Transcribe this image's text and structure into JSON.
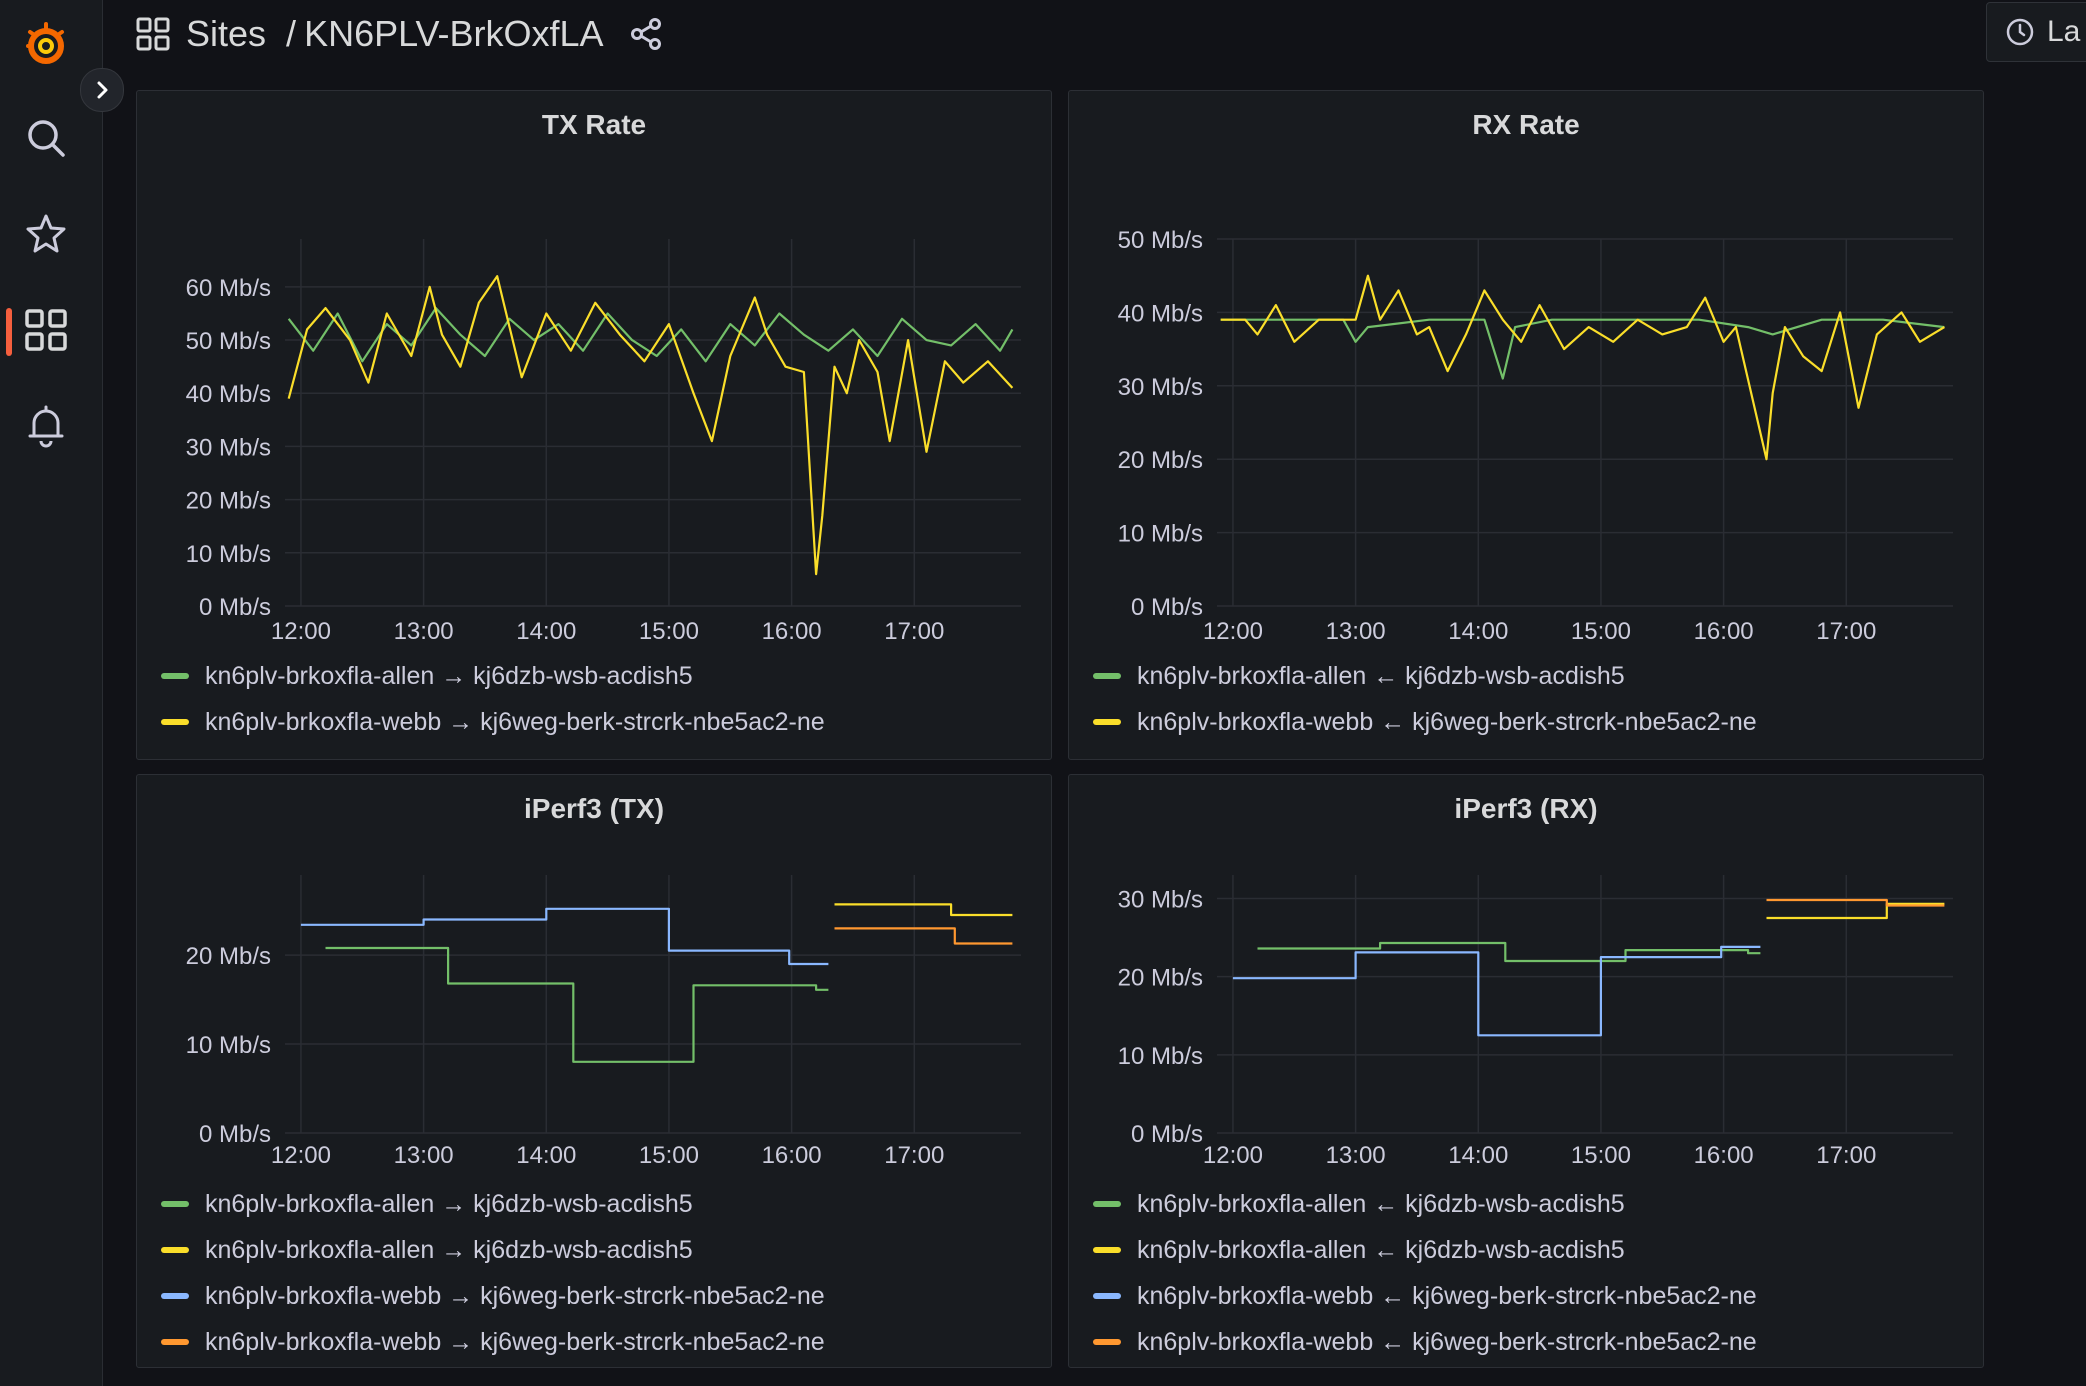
{
  "breadcrumb": {
    "parent": "Sites",
    "separator": "/",
    "current": "KN6PLV-BrkOxfLA"
  },
  "time_picker": {
    "label": "La"
  },
  "colors": {
    "green": "#73bf69",
    "yellow": "#fade2a",
    "blue": "#8ab8ff",
    "orange": "#ff9830",
    "accent": "#f55f3e"
  },
  "panels": [
    {
      "title": "TX Rate",
      "legend": [
        {
          "label": "kn6plv-brkoxfla-allen → kj6dzb-wsb-acdish5",
          "color": "#73bf69"
        },
        {
          "label": "kn6plv-brkoxfla-webb → kj6weg-berk-strcrk-nbe5ac2-ne",
          "color": "#fade2a"
        }
      ]
    },
    {
      "title": "RX Rate",
      "legend": [
        {
          "label": "kn6plv-brkoxfla-allen ← kj6dzb-wsb-acdish5",
          "color": "#73bf69"
        },
        {
          "label": "kn6plv-brkoxfla-webb ← kj6weg-berk-strcrk-nbe5ac2-ne",
          "color": "#fade2a"
        }
      ]
    },
    {
      "title": "iPerf3 (TX)",
      "legend": [
        {
          "label": "kn6plv-brkoxfla-allen → kj6dzb-wsb-acdish5",
          "color": "#73bf69"
        },
        {
          "label": "kn6plv-brkoxfla-allen → kj6dzb-wsb-acdish5",
          "color": "#fade2a"
        },
        {
          "label": "kn6plv-brkoxfla-webb → kj6weg-berk-strcrk-nbe5ac2-ne",
          "color": "#8ab8ff"
        },
        {
          "label": "kn6plv-brkoxfla-webb → kj6weg-berk-strcrk-nbe5ac2-ne",
          "color": "#ff9830"
        }
      ]
    },
    {
      "title": "iPerf3 (RX)",
      "legend": [
        {
          "label": "kn6plv-brkoxfla-allen ← kj6dzb-wsb-acdish5",
          "color": "#73bf69"
        },
        {
          "label": "kn6plv-brkoxfla-allen ← kj6dzb-wsb-acdish5",
          "color": "#fade2a"
        },
        {
          "label": "kn6plv-brkoxfla-webb ← kj6weg-berk-strcrk-nbe5ac2-ne",
          "color": "#8ab8ff"
        },
        {
          "label": "kn6plv-brkoxfla-webb ← kj6weg-berk-strcrk-nbe5ac2-ne",
          "color": "#ff9830"
        }
      ]
    }
  ],
  "chart_data": [
    {
      "type": "line",
      "title": "TX Rate",
      "x_ticks": [
        "12:00",
        "13:00",
        "14:00",
        "15:00",
        "16:00",
        "17:00"
      ],
      "y_ticks": [
        "0 Mb/s",
        "10 Mb/s",
        "20 Mb/s",
        "30 Mb/s",
        "40 Mb/s",
        "50 Mb/s",
        "60 Mb/s"
      ],
      "xlim": [
        11.87,
        17.87
      ],
      "ylim": [
        0,
        69
      ],
      "series": [
        {
          "name": "kn6plv-brkoxfla-allen → kj6dzb-wsb-acdish5",
          "color": "#73bf69",
          "x": [
            11.9,
            12.1,
            12.3,
            12.5,
            12.7,
            12.9,
            13.1,
            13.3,
            13.5,
            13.7,
            13.9,
            14.1,
            14.3,
            14.5,
            14.7,
            14.9,
            15.1,
            15.3,
            15.5,
            15.7,
            15.9,
            16.1,
            16.3,
            16.5,
            16.7,
            16.9,
            17.1,
            17.3,
            17.5,
            17.7,
            17.8
          ],
          "values": [
            54,
            48,
            55,
            46,
            53,
            49,
            56,
            51,
            47,
            54,
            50,
            53,
            48,
            55,
            50,
            47,
            52,
            46,
            53,
            49,
            55,
            51,
            48,
            52,
            47,
            54,
            50,
            49,
            53,
            48,
            52
          ]
        },
        {
          "name": "kn6plv-brkoxfla-webb → kj6weg-berk-strcrk-nbe5ac2-ne",
          "color": "#fade2a",
          "x": [
            11.9,
            12.05,
            12.2,
            12.4,
            12.55,
            12.7,
            12.9,
            13.05,
            13.15,
            13.3,
            13.45,
            13.6,
            13.8,
            14.0,
            14.2,
            14.4,
            14.6,
            14.8,
            15.0,
            15.2,
            15.35,
            15.5,
            15.7,
            15.8,
            15.95,
            16.1,
            16.2,
            16.25,
            16.35,
            16.45,
            16.55,
            16.7,
            16.8,
            16.95,
            17.1,
            17.25,
            17.4,
            17.6,
            17.8
          ],
          "values": [
            39,
            52,
            56,
            50,
            42,
            55,
            47,
            60,
            51,
            45,
            57,
            62,
            43,
            55,
            48,
            57,
            51,
            46,
            53,
            40,
            31,
            47,
            58,
            51,
            45,
            44,
            6,
            17,
            45,
            40,
            50,
            44,
            31,
            50,
            29,
            46,
            42,
            46,
            41
          ]
        }
      ]
    },
    {
      "type": "line",
      "title": "RX Rate",
      "x_ticks": [
        "12:00",
        "13:00",
        "14:00",
        "15:00",
        "16:00",
        "17:00"
      ],
      "y_ticks": [
        "0 Mb/s",
        "10 Mb/s",
        "20 Mb/s",
        "30 Mb/s",
        "40 Mb/s",
        "50 Mb/s"
      ],
      "xlim": [
        11.87,
        17.87
      ],
      "ylim": [
        0,
        50
      ],
      "series": [
        {
          "name": "kn6plv-brkoxfla-allen ← kj6dzb-wsb-acdish5",
          "color": "#73bf69",
          "x": [
            11.9,
            12.3,
            12.6,
            12.9,
            13.0,
            13.1,
            13.6,
            13.8,
            14.05,
            14.2,
            14.3,
            14.6,
            15.0,
            15.4,
            15.8,
            16.2,
            16.4,
            16.8,
            17.3,
            17.8
          ],
          "values": [
            39,
            39,
            39,
            39,
            36,
            38,
            39,
            39,
            39,
            31,
            38,
            39,
            39,
            39,
            39,
            38,
            37,
            39,
            39,
            38
          ]
        },
        {
          "name": "kn6plv-brkoxfla-webb ← kj6weg-berk-strcrk-nbe5ac2-ne",
          "color": "#fade2a",
          "x": [
            11.9,
            12.1,
            12.2,
            12.35,
            12.5,
            12.7,
            13.0,
            13.1,
            13.2,
            13.35,
            13.5,
            13.6,
            13.75,
            13.9,
            14.05,
            14.2,
            14.35,
            14.5,
            14.7,
            14.9,
            15.1,
            15.3,
            15.5,
            15.7,
            15.85,
            16.0,
            16.1,
            16.35,
            16.4,
            16.5,
            16.65,
            16.8,
            16.95,
            17.1,
            17.25,
            17.45,
            17.6,
            17.8
          ],
          "values": [
            39,
            39,
            37,
            41,
            36,
            39,
            39,
            45,
            39,
            43,
            37,
            38,
            32,
            37,
            43,
            39,
            36,
            41,
            35,
            38,
            36,
            39,
            37,
            38,
            42,
            36,
            38,
            20,
            29,
            38,
            34,
            32,
            40,
            27,
            37,
            40,
            36,
            38
          ]
        }
      ]
    },
    {
      "type": "line",
      "title": "iPerf3 (TX)",
      "x_ticks": [
        "12:00",
        "13:00",
        "14:00",
        "15:00",
        "16:00",
        "17:00"
      ],
      "y_ticks": [
        "0 Mb/s",
        "10 Mb/s",
        "20 Mb/s"
      ],
      "xlim": [
        11.87,
        17.87
      ],
      "ylim": [
        0,
        29
      ],
      "series": [
        {
          "name": "kn6plv-brkoxfla-allen → kj6dzb-wsb-acdish5",
          "color": "#73bf69",
          "x": [
            12.2,
            13.2,
            13.2,
            14.22,
            14.22,
            15.2,
            15.2,
            16.2,
            16.2,
            16.3
          ],
          "values": [
            20.8,
            20.8,
            16.8,
            16.8,
            8.0,
            8.0,
            16.6,
            16.6,
            16.1,
            16.1
          ]
        },
        {
          "name": "kn6plv-brkoxfla-allen → kj6dzb-wsb-acdish5",
          "color": "#fade2a",
          "x": [
            16.35,
            17.3,
            17.3,
            17.8
          ],
          "values": [
            25.7,
            25.7,
            24.5,
            24.5
          ]
        },
        {
          "name": "kn6plv-brkoxfla-webb → kj6weg-berk-strcrk-nbe5ac2-ne",
          "color": "#8ab8ff",
          "x": [
            12.0,
            13.0,
            13.0,
            14.0,
            14.0,
            15.0,
            15.0,
            15.98,
            15.98,
            16.3
          ],
          "values": [
            23.4,
            23.4,
            24.0,
            24.0,
            25.2,
            25.2,
            20.5,
            20.5,
            19.0,
            19.0
          ]
        },
        {
          "name": "kn6plv-brkoxfla-webb → kj6weg-berk-strcrk-nbe5ac2-ne",
          "color": "#ff9830",
          "x": [
            16.35,
            17.33,
            17.33,
            17.8
          ],
          "values": [
            23.0,
            23.0,
            21.3,
            21.3
          ]
        }
      ]
    },
    {
      "type": "line",
      "title": "iPerf3 (RX)",
      "x_ticks": [
        "12:00",
        "13:00",
        "14:00",
        "15:00",
        "16:00",
        "17:00"
      ],
      "y_ticks": [
        "0 Mb/s",
        "10 Mb/s",
        "20 Mb/s",
        "30 Mb/s"
      ],
      "xlim": [
        11.87,
        17.87
      ],
      "ylim": [
        0,
        33
      ],
      "series": [
        {
          "name": "kn6plv-brkoxfla-allen ← kj6dzb-wsb-acdish5",
          "color": "#73bf69",
          "x": [
            12.2,
            13.2,
            13.2,
            14.22,
            14.22,
            15.2,
            15.2,
            16.2,
            16.2,
            16.3
          ],
          "values": [
            23.6,
            23.6,
            24.3,
            24.3,
            22.0,
            22.0,
            23.4,
            23.4,
            23.0,
            23.0
          ]
        },
        {
          "name": "kn6plv-brkoxfla-allen ← kj6dzb-wsb-acdish5",
          "color": "#fade2a",
          "x": [
            16.35,
            17.33,
            17.33,
            17.8
          ],
          "values": [
            27.5,
            27.5,
            29.3,
            29.3
          ]
        },
        {
          "name": "kn6plv-brkoxfla-webb ← kj6weg-berk-strcrk-nbe5ac2-ne",
          "color": "#8ab8ff",
          "x": [
            12.0,
            13.0,
            13.0,
            14.0,
            14.0,
            15.0,
            15.0,
            15.98,
            15.98,
            16.3
          ],
          "values": [
            19.8,
            19.8,
            23.1,
            23.1,
            12.5,
            12.5,
            22.5,
            22.5,
            23.8,
            23.8
          ]
        },
        {
          "name": "kn6plv-brkoxfla-webb ← kj6weg-berk-strcrk-nbe5ac2-ne",
          "color": "#ff9830",
          "x": [
            16.35,
            17.33,
            17.33,
            17.8
          ],
          "values": [
            29.8,
            29.8,
            29.1,
            29.1
          ]
        }
      ]
    }
  ]
}
